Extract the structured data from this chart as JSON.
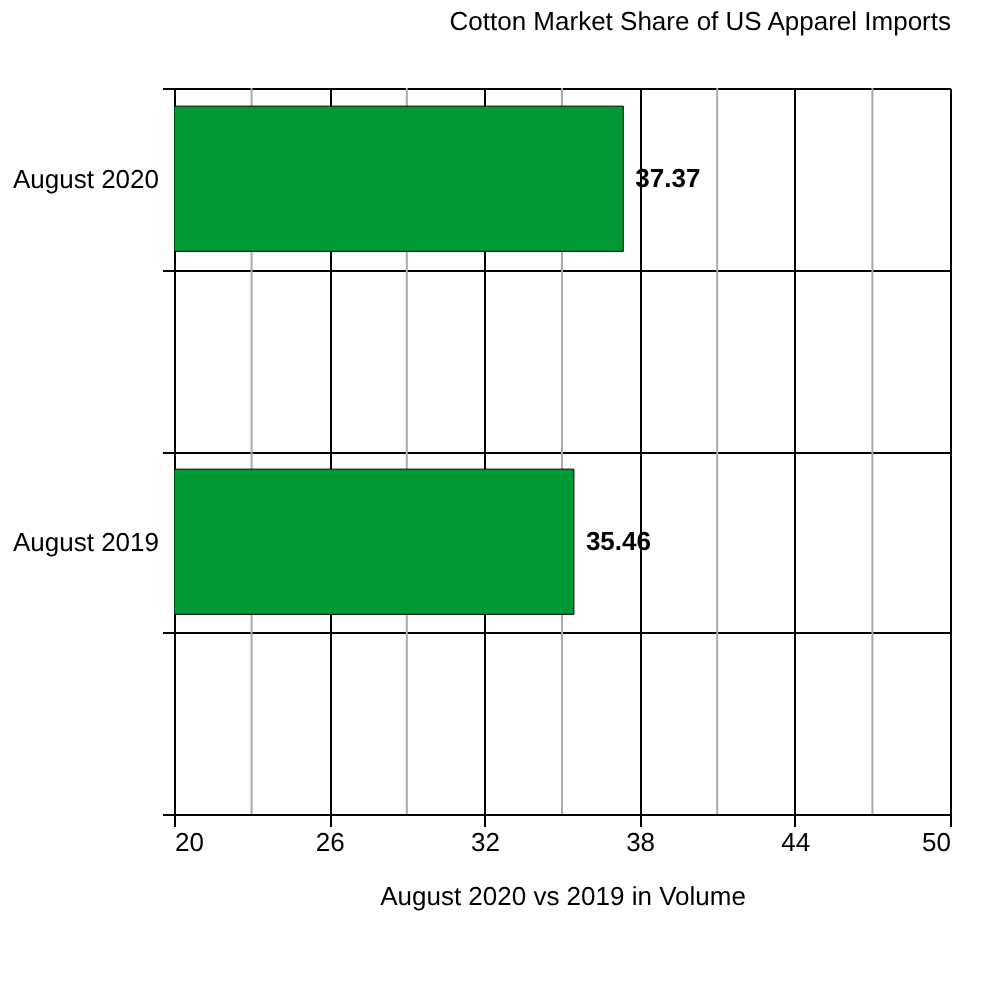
{
  "chart_data": {
    "type": "bar",
    "orientation": "horizontal",
    "title": "Cotton Market Share of US Apparel Imports",
    "xlabel": "August 2020 vs 2019 in Volume",
    "categories": [
      "August 2020",
      null,
      "August 2019",
      null
    ],
    "values": [
      37.37,
      null,
      35.46,
      null
    ],
    "color": "#009933",
    "data_labels": true,
    "xlim": [
      20,
      50
    ],
    "xticks": [
      20,
      {
        "value": 23,
        "label": null
      },
      26,
      {
        "value": 29,
        "label": null
      },
      32,
      {
        "value": 35,
        "label": null
      },
      38,
      {
        "value": 41,
        "label": null
      },
      44,
      {
        "value": 47,
        "label": null
      },
      50
    ],
    "grid": true
  }
}
